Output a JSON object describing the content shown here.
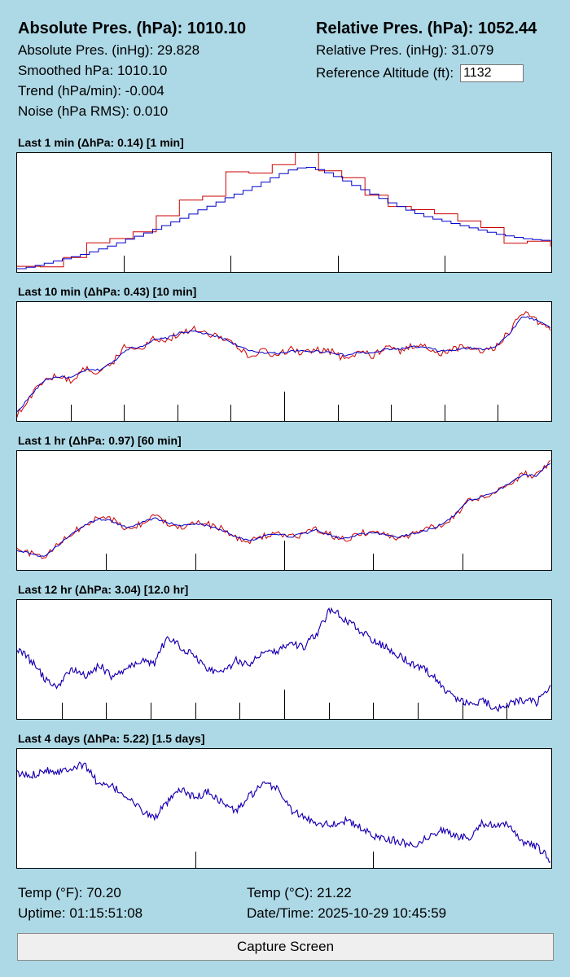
{
  "readings": {
    "abs_hpa_label": "Absolute Pres. (hPa):",
    "abs_hpa_value": "1010.10",
    "abs_inhg_label": "Absolute Pres. (inHg):",
    "abs_inhg_value": "29.828",
    "smoothed_label": "Smoothed hPa:",
    "smoothed_value": "1010.10",
    "trend_label": "Trend (hPa/min):",
    "trend_value": "-0.004",
    "noise_label": "Noise (hPa RMS):",
    "noise_value": "0.010",
    "rel_hpa_label": "Relative Pres. (hPa):",
    "rel_hpa_value": "1052.44",
    "rel_inhg_label": "Relative Pres. (inHg):",
    "rel_inhg_value": "31.079",
    "ref_alt_label": "Reference Altitude (ft):",
    "ref_alt_value": "1132"
  },
  "footer": {
    "temp_f_label": "Temp (°F):",
    "temp_f_value": "70.20",
    "temp_c_label": "Temp (°C):",
    "temp_c_value": "21.22",
    "uptime_label": "Uptime:",
    "uptime_value": "01:15:51:08",
    "datetime_label": "Date/Time:",
    "datetime_value": "2025-10-29 10:45:59"
  },
  "capture_button_label": "Capture Screen",
  "colors": {
    "background": "#add8e6",
    "raw_series": "#cc0000",
    "smoothed_series": "#0000cc"
  },
  "charts": [
    {
      "title": "Last 1 min (ΔhPa: 0.14) [1 min]"
    },
    {
      "title": "Last 10 min (ΔhPa: 0.43) [10 min]"
    },
    {
      "title": "Last 1 hr (ΔhPa: 0.97) [60 min]"
    },
    {
      "title": "Last 12 hr (ΔhPa: 3.04) [12.0 hr]"
    },
    {
      "title": "Last 4 days (ΔhPa: 5.22) [1.5 days]"
    }
  ],
  "chart_data": [
    {
      "type": "line",
      "title": "Last 1 min (ΔhPa: 0.14) [1 min]",
      "xlabel": "",
      "ylabel": "",
      "grid": false,
      "x_ticks": 5,
      "step": true,
      "series": [
        {
          "values": [
            0.01,
            0.02,
            0.05,
            0.08,
            0.12,
            0.17,
            0.22,
            0.26,
            0.3,
            0.36,
            0.42,
            0.5,
            0.58,
            0.66,
            0.74,
            0.8,
            0.86,
            0.9,
            0.95,
            0.99,
            1.0,
            0.98,
            0.94,
            0.88,
            0.82,
            0.75,
            0.68,
            0.62,
            0.57,
            0.5,
            0.46,
            0.43,
            0.4,
            0.37,
            0.34,
            0.3,
            0.27,
            0.24,
            0.22,
            0.2
          ]
        },
        {
          "values": [
            0.0,
            0.02,
            0.05,
            0.08,
            0.11,
            0.14,
            0.18,
            0.22,
            0.27,
            0.31,
            0.36,
            0.41,
            0.46,
            0.52,
            0.57,
            0.63,
            0.68,
            0.73,
            0.79,
            0.85,
            0.9,
            0.92,
            0.89,
            0.84,
            0.78,
            0.72,
            0.66,
            0.6,
            0.55,
            0.5,
            0.46,
            0.43,
            0.4,
            0.37,
            0.34,
            0.31,
            0.29,
            0.27,
            0.26,
            0.25
          ]
        }
      ]
    },
    {
      "type": "line",
      "title": "Last 10 min (ΔhPa: 0.43) [10 min]",
      "xlabel": "",
      "ylabel": "",
      "grid": false,
      "x_ticks": 10,
      "series": [
        {
          "values": [
            0.02,
            0.2,
            0.34,
            0.38,
            0.33,
            0.45,
            0.4,
            0.5,
            0.66,
            0.62,
            0.72,
            0.7,
            0.78,
            0.8,
            0.74,
            0.73,
            0.66,
            0.56,
            0.6,
            0.56,
            0.62,
            0.58,
            0.61,
            0.6,
            0.52,
            0.6,
            0.56,
            0.64,
            0.6,
            0.66,
            0.63,
            0.58,
            0.62,
            0.65,
            0.6,
            0.64,
            0.78,
            0.96,
            0.88,
            0.78
          ]
        },
        {
          "values": [
            0.05,
            0.2,
            0.34,
            0.37,
            0.36,
            0.43,
            0.43,
            0.5,
            0.62,
            0.64,
            0.7,
            0.72,
            0.77,
            0.78,
            0.75,
            0.72,
            0.66,
            0.6,
            0.59,
            0.58,
            0.6,
            0.6,
            0.6,
            0.59,
            0.56,
            0.59,
            0.58,
            0.62,
            0.62,
            0.64,
            0.63,
            0.6,
            0.61,
            0.63,
            0.62,
            0.64,
            0.76,
            0.92,
            0.88,
            0.82
          ]
        }
      ]
    },
    {
      "type": "line",
      "title": "Last 1 hr (ΔhPa: 0.97) [60 min]",
      "xlabel": "",
      "ylabel": "",
      "grid": false,
      "x_ticks": 6,
      "series": [
        {
          "values": [
            0.15,
            0.12,
            0.08,
            0.2,
            0.3,
            0.38,
            0.44,
            0.42,
            0.34,
            0.38,
            0.46,
            0.4,
            0.36,
            0.4,
            0.38,
            0.34,
            0.26,
            0.22,
            0.28,
            0.3,
            0.26,
            0.3,
            0.34,
            0.28,
            0.24,
            0.3,
            0.32,
            0.28,
            0.26,
            0.3,
            0.34,
            0.38,
            0.46,
            0.6,
            0.62,
            0.68,
            0.74,
            0.84,
            0.82,
            0.96
          ]
        },
        {
          "values": [
            0.15,
            0.12,
            0.09,
            0.19,
            0.3,
            0.38,
            0.43,
            0.41,
            0.35,
            0.39,
            0.44,
            0.4,
            0.37,
            0.39,
            0.37,
            0.33,
            0.27,
            0.23,
            0.28,
            0.3,
            0.27,
            0.3,
            0.33,
            0.28,
            0.25,
            0.29,
            0.31,
            0.28,
            0.27,
            0.3,
            0.33,
            0.38,
            0.47,
            0.6,
            0.63,
            0.68,
            0.75,
            0.83,
            0.82,
            0.94
          ]
        }
      ]
    },
    {
      "type": "line",
      "title": "Last 12 hr (ΔhPa: 3.04) [12.0 hr]",
      "xlabel": "",
      "ylabel": "",
      "grid": false,
      "x_ticks": 12,
      "series": [
        {
          "values": [
            0.6,
            0.5,
            0.34,
            0.26,
            0.42,
            0.36,
            0.46,
            0.34,
            0.44,
            0.5,
            0.46,
            0.72,
            0.62,
            0.54,
            0.42,
            0.38,
            0.5,
            0.46,
            0.6,
            0.58,
            0.66,
            0.62,
            0.76,
            0.98,
            0.86,
            0.78,
            0.68,
            0.62,
            0.54,
            0.46,
            0.4,
            0.28,
            0.16,
            0.1,
            0.14,
            0.06,
            0.1,
            0.14,
            0.12,
            0.28
          ]
        },
        {
          "values": [
            0.6,
            0.5,
            0.34,
            0.26,
            0.42,
            0.36,
            0.46,
            0.34,
            0.44,
            0.5,
            0.46,
            0.72,
            0.62,
            0.54,
            0.42,
            0.38,
            0.5,
            0.46,
            0.6,
            0.58,
            0.66,
            0.62,
            0.76,
            0.98,
            0.86,
            0.78,
            0.68,
            0.62,
            0.54,
            0.46,
            0.4,
            0.28,
            0.16,
            0.1,
            0.14,
            0.06,
            0.1,
            0.14,
            0.12,
            0.28
          ]
        }
      ]
    },
    {
      "type": "line",
      "title": "Last 4 days (ΔhPa: 5.22) [1.5 days]",
      "xlabel": "",
      "ylabel": "",
      "grid": false,
      "x_ticks": 3,
      "series": [
        {
          "values": [
            0.82,
            0.8,
            0.86,
            0.84,
            0.88,
            0.9,
            0.72,
            0.7,
            0.62,
            0.5,
            0.42,
            0.56,
            0.68,
            0.6,
            0.66,
            0.56,
            0.48,
            0.62,
            0.72,
            0.7,
            0.5,
            0.42,
            0.38,
            0.36,
            0.4,
            0.34,
            0.26,
            0.24,
            0.2,
            0.18,
            0.24,
            0.32,
            0.26,
            0.24,
            0.38,
            0.34,
            0.36,
            0.2,
            0.16,
            0.04
          ]
        },
        {
          "values": [
            0.82,
            0.8,
            0.86,
            0.84,
            0.88,
            0.9,
            0.72,
            0.7,
            0.62,
            0.5,
            0.42,
            0.56,
            0.68,
            0.6,
            0.66,
            0.56,
            0.48,
            0.62,
            0.72,
            0.7,
            0.5,
            0.42,
            0.38,
            0.36,
            0.4,
            0.34,
            0.26,
            0.24,
            0.2,
            0.18,
            0.24,
            0.32,
            0.26,
            0.24,
            0.38,
            0.34,
            0.36,
            0.2,
            0.16,
            0.04
          ]
        }
      ]
    }
  ]
}
